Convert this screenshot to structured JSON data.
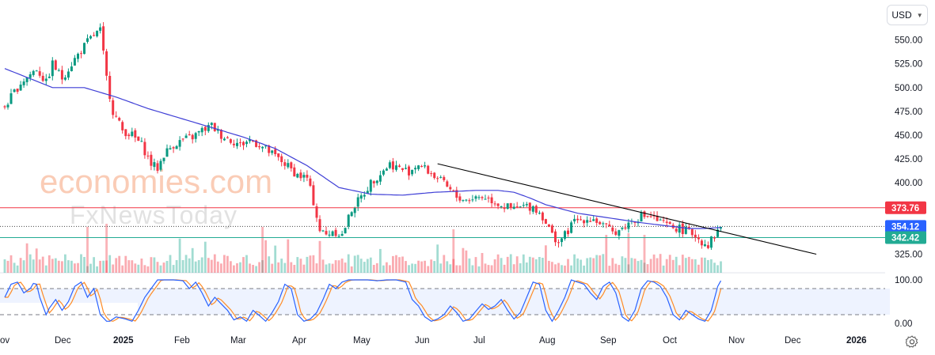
{
  "header": {
    "currency": "USD"
  },
  "watermark": {
    "brand": "economies.com",
    "sub": "FxNewsToday"
  },
  "chart_data": {
    "type": "candlestick",
    "price_axis": {
      "ticks": [
        550,
        525,
        500,
        475,
        450,
        425,
        400,
        325
      ],
      "ylim": [
        316,
        566
      ]
    },
    "time_axis": {
      "labels": [
        {
          "text": "ov",
          "bold": false
        },
        {
          "text": "Dec",
          "bold": false
        },
        {
          "text": "2025",
          "bold": true
        },
        {
          "text": "Feb",
          "bold": false
        },
        {
          "text": "Mar",
          "bold": false
        },
        {
          "text": "Apr",
          "bold": false
        },
        {
          "text": "May",
          "bold": false
        },
        {
          "text": "Jun",
          "bold": false
        },
        {
          "text": "Jul",
          "bold": false
        },
        {
          "text": "Aug",
          "bold": false
        },
        {
          "text": "Sep",
          "bold": false
        },
        {
          "text": "Oct",
          "bold": false
        },
        {
          "text": "Nov",
          "bold": false
        },
        {
          "text": "Dec",
          "bold": false
        },
        {
          "text": "2026",
          "bold": true
        }
      ]
    },
    "levels": [
      {
        "name": "resistance",
        "value": 373.76,
        "label": "373.76",
        "color": "#f23645"
      },
      {
        "name": "last-price",
        "value": 354.12,
        "label": "354.12",
        "color": "#2962ff"
      },
      {
        "name": "support",
        "value": 342.42,
        "label": "342.42",
        "color": "#22ab94"
      }
    ],
    "series": [
      {
        "name": "price",
        "anchors": [
          [
            0,
            480
          ],
          [
            5,
            505
          ],
          [
            10,
            520
          ],
          [
            13,
            505
          ],
          [
            15,
            525
          ],
          [
            18,
            510
          ],
          [
            22,
            530
          ],
          [
            26,
            548
          ],
          [
            28,
            555
          ],
          [
            30,
            560
          ],
          [
            32,
            510
          ],
          [
            34,
            475
          ],
          [
            37,
            455
          ],
          [
            40,
            450
          ],
          [
            43,
            440
          ],
          [
            46,
            420
          ],
          [
            48,
            415
          ],
          [
            50,
            430
          ],
          [
            53,
            440
          ],
          [
            56,
            445
          ],
          [
            59,
            448
          ],
          [
            62,
            455
          ],
          [
            65,
            460
          ],
          [
            68,
            450
          ],
          [
            71,
            445
          ],
          [
            74,
            440
          ],
          [
            77,
            445
          ],
          [
            80,
            440
          ],
          [
            84,
            430
          ],
          [
            88,
            420
          ],
          [
            92,
            408
          ],
          [
            95,
            405
          ],
          [
            97,
            380
          ],
          [
            99,
            350
          ],
          [
            101,
            345
          ],
          [
            103,
            350
          ],
          [
            106,
            345
          ],
          [
            109,
            372
          ],
          [
            112,
            385
          ],
          [
            115,
            400
          ],
          [
            118,
            410
          ],
          [
            121,
            420
          ],
          [
            124,
            415
          ],
          [
            127,
            412
          ],
          [
            130,
            420
          ],
          [
            133,
            412
          ],
          [
            136,
            405
          ],
          [
            139,
            395
          ],
          [
            142,
            385
          ],
          [
            145,
            382
          ],
          [
            148,
            385
          ],
          [
            151,
            385
          ],
          [
            154,
            380
          ],
          [
            157,
            375
          ],
          [
            160,
            372
          ],
          [
            163,
            375
          ],
          [
            166,
            375
          ],
          [
            169,
            365
          ],
          [
            172,
            345
          ],
          [
            174,
            338
          ],
          [
            176,
            345
          ],
          [
            179,
            360
          ],
          [
            182,
            362
          ],
          [
            185,
            362
          ],
          [
            188,
            355
          ],
          [
            191,
            348
          ],
          [
            194,
            352
          ],
          [
            197,
            360
          ],
          [
            200,
            365
          ],
          [
            203,
            365
          ],
          [
            206,
            358
          ],
          [
            209,
            354
          ],
          [
            212,
            352
          ],
          [
            215,
            348
          ],
          [
            217,
            345
          ],
          [
            219,
            338
          ],
          [
            221,
            335
          ],
          [
            223,
            345
          ],
          [
            225,
            354
          ]
        ]
      },
      {
        "name": "moving-average",
        "anchors": [
          [
            0,
            520
          ],
          [
            15,
            500
          ],
          [
            25,
            500
          ],
          [
            35,
            490
          ],
          [
            45,
            478
          ],
          [
            55,
            468
          ],
          [
            65,
            458
          ],
          [
            75,
            448
          ],
          [
            85,
            436
          ],
          [
            95,
            418
          ],
          [
            105,
            395
          ],
          [
            115,
            388
          ],
          [
            125,
            387
          ],
          [
            135,
            390
          ],
          [
            142,
            391
          ],
          [
            148,
            392
          ],
          [
            155,
            392
          ],
          [
            160,
            390
          ],
          [
            165,
            384
          ],
          [
            170,
            377
          ],
          [
            180,
            368
          ],
          [
            190,
            363
          ],
          [
            200,
            358
          ],
          [
            210,
            354
          ],
          [
            215,
            352
          ],
          [
            220,
            352
          ],
          [
            225,
            353
          ]
        ]
      },
      {
        "name": "trendline",
        "anchors": [
          [
            136,
            420
          ],
          [
            255,
            325
          ]
        ]
      }
    ],
    "oscillator": {
      "name": "stochastic",
      "ticks": [
        {
          "value": 100,
          "label": "100.00"
        },
        {
          "value": 0,
          "label": "0.00"
        }
      ],
      "bands": [
        80,
        20
      ],
      "k": [
        [
          0,
          60
        ],
        [
          2,
          90
        ],
        [
          4,
          95
        ],
        [
          6,
          70
        ],
        [
          8,
          80
        ],
        [
          9,
          92
        ],
        [
          10,
          90
        ],
        [
          11,
          60
        ],
        [
          12,
          40
        ],
        [
          13,
          20
        ],
        [
          14,
          35
        ],
        [
          16,
          55
        ],
        [
          18,
          30
        ],
        [
          20,
          50
        ],
        [
          22,
          85
        ],
        [
          24,
          95
        ],
        [
          26,
          60
        ],
        [
          28,
          80
        ],
        [
          30,
          20
        ],
        [
          32,
          5
        ],
        [
          33,
          5
        ],
        [
          35,
          15
        ],
        [
          38,
          10
        ],
        [
          40,
          5
        ],
        [
          42,
          30
        ],
        [
          44,
          60
        ],
        [
          46,
          80
        ],
        [
          48,
          100
        ],
        [
          53,
          100
        ],
        [
          56,
          98
        ],
        [
          58,
          80
        ],
        [
          60,
          95
        ],
        [
          62,
          70
        ],
        [
          64,
          40
        ],
        [
          66,
          60
        ],
        [
          68,
          45
        ],
        [
          70,
          30
        ],
        [
          72,
          8
        ],
        [
          74,
          15
        ],
        [
          76,
          5
        ],
        [
          78,
          30
        ],
        [
          80,
          18
        ],
        [
          82,
          5
        ],
        [
          84,
          25
        ],
        [
          86,
          50
        ],
        [
          88,
          90
        ],
        [
          90,
          80
        ],
        [
          92,
          20
        ],
        [
          94,
          5
        ],
        [
          96,
          10
        ],
        [
          98,
          25
        ],
        [
          100,
          55
        ],
        [
          102,
          90
        ],
        [
          104,
          80
        ],
        [
          106,
          95
        ],
        [
          108,
          100
        ],
        [
          111,
          100
        ],
        [
          114,
          100
        ],
        [
          117,
          98
        ],
        [
          120,
          100
        ],
        [
          123,
          100
        ],
        [
          126,
          95
        ],
        [
          128,
          55
        ],
        [
          130,
          40
        ],
        [
          132,
          15
        ],
        [
          134,
          5
        ],
        [
          136,
          10
        ],
        [
          138,
          20
        ],
        [
          140,
          40
        ],
        [
          142,
          25
        ],
        [
          144,
          5
        ],
        [
          146,
          10
        ],
        [
          148,
          28
        ],
        [
          150,
          45
        ],
        [
          152,
          32
        ],
        [
          154,
          40
        ],
        [
          156,
          55
        ],
        [
          158,
          30
        ],
        [
          160,
          10
        ],
        [
          162,
          25
        ],
        [
          164,
          60
        ],
        [
          166,
          95
        ],
        [
          168,
          90
        ],
        [
          170,
          30
        ],
        [
          172,
          5
        ],
        [
          174,
          30
        ],
        [
          176,
          60
        ],
        [
          178,
          100
        ],
        [
          180,
          95
        ],
        [
          182,
          90
        ],
        [
          184,
          70
        ],
        [
          186,
          55
        ],
        [
          188,
          85
        ],
        [
          190,
          95
        ],
        [
          192,
          70
        ],
        [
          194,
          15
        ],
        [
          196,
          5
        ],
        [
          198,
          30
        ],
        [
          200,
          80
        ],
        [
          202,
          98
        ],
        [
          204,
          95
        ],
        [
          206,
          85
        ],
        [
          208,
          60
        ],
        [
          210,
          20
        ],
        [
          212,
          8
        ],
        [
          214,
          30
        ],
        [
          216,
          20
        ],
        [
          218,
          10
        ],
        [
          220,
          5
        ],
        [
          222,
          30
        ],
        [
          224,
          85
        ],
        [
          225,
          98
        ]
      ]
    }
  }
}
